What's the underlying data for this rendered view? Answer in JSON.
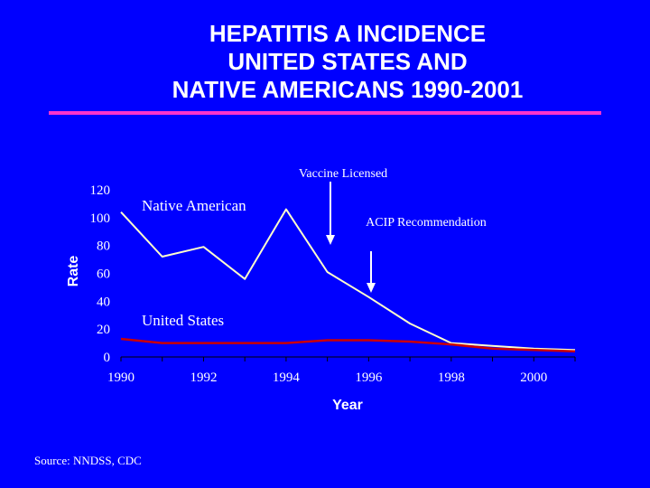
{
  "title_lines": [
    "HEPATITIS A INCIDENCE",
    "UNITED STATES AND",
    "NATIVE AMERICANS 1990-2001"
  ],
  "source": "Source: NNDSS, CDC",
  "colors": {
    "background": "#0000ff",
    "rule": "#ff33cc",
    "native_series": "#ffffcc",
    "us_series": "#cc0000",
    "text": "#ffffff"
  },
  "chart_data": {
    "type": "line",
    "xlabel": "Year",
    "ylabel": "Rate",
    "x_ticks": [
      1990,
      1992,
      1994,
      1996,
      1998,
      2000
    ],
    "y_ticks": [
      0,
      20,
      40,
      60,
      80,
      100,
      120
    ],
    "xlim": [
      1990,
      2001
    ],
    "ylim": [
      0,
      120
    ],
    "grid": false,
    "series": [
      {
        "name": "Native American",
        "x": [
          1990,
          1991,
          1992,
          1993,
          1994,
          1995,
          1996,
          1997,
          1998,
          1999,
          2000,
          2001
        ],
        "values": [
          104,
          72,
          79,
          56,
          106,
          61,
          43,
          24,
          10,
          8,
          6,
          5
        ]
      },
      {
        "name": "United States",
        "x": [
          1990,
          1991,
          1992,
          1993,
          1994,
          1995,
          1996,
          1997,
          1998,
          1999,
          2000,
          2001
        ],
        "values": [
          13,
          10,
          10,
          10,
          10,
          12,
          12,
          11,
          9,
          6,
          5,
          4
        ]
      }
    ],
    "annotations": [
      {
        "text": "Vaccine Licensed",
        "x": 1995
      },
      {
        "text": "ACIP Recommendation",
        "x": 1996
      }
    ]
  }
}
